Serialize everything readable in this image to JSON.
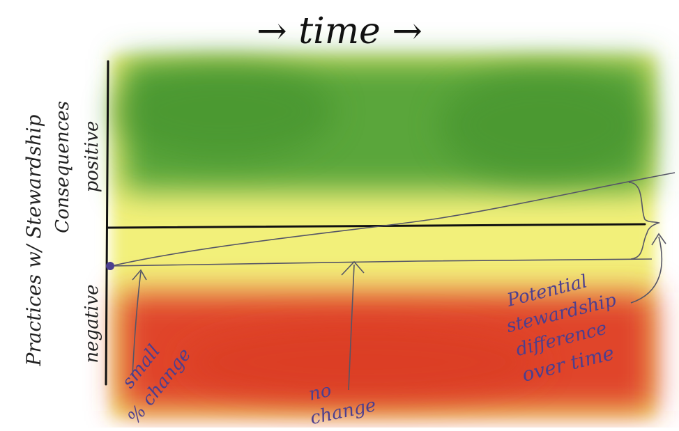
{
  "title": "→ time →",
  "y_axis": {
    "outer_label": "Practices w/ Stewardship",
    "inner_label": "Consequences",
    "positive_label": "positive",
    "negative_label": "negative"
  },
  "annotations": {
    "small_change_line1": "small",
    "small_change_line2": "% change",
    "no_change_line1": "no",
    "no_change_line2": "change",
    "potential_line1": "Potential",
    "potential_line2": "stewardship",
    "potential_line3": "difference",
    "potential_line4": "over time"
  },
  "colors": {
    "positive_zone": "#5aa63a",
    "neutral_zone": "#f2f07a",
    "negative_zone": "#e0452a",
    "axis_ink": "#111111",
    "pencil": "#555566",
    "purple_ink": "#4b3f8f"
  }
}
